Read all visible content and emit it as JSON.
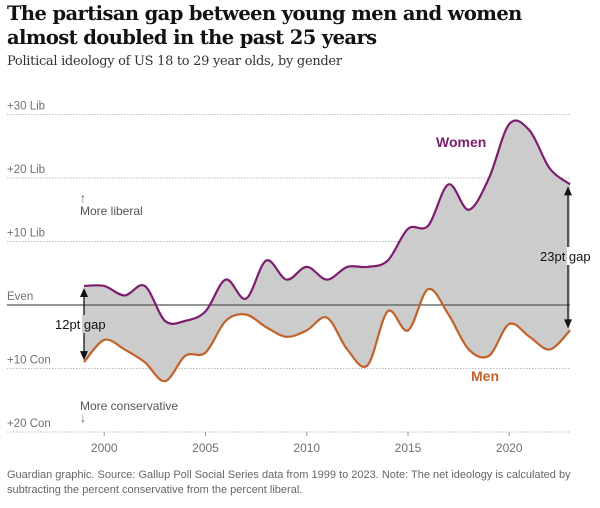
{
  "chart_data": {
    "type": "area",
    "title": "The partisan gap between young men and women almost doubled in the past 25 years",
    "subtitle": "Political ideology of US 18 to 29 year olds, by gender",
    "xlabel": "",
    "ylabel": "",
    "x": [
      1999,
      2000,
      2001,
      2002,
      2003,
      2004,
      2005,
      2006,
      2007,
      2008,
      2009,
      2010,
      2011,
      2012,
      2013,
      2014,
      2015,
      2016,
      2017,
      2018,
      2019,
      2020,
      2021,
      2022,
      2023
    ],
    "series": [
      {
        "name": "Women",
        "color": "#7d1d6e",
        "values": [
          3,
          3,
          1.5,
          3,
          -2.5,
          -2.5,
          -1,
          4,
          1,
          7,
          4,
          6,
          4,
          6,
          6,
          7,
          12,
          12.5,
          19,
          15,
          20,
          28.5,
          27.5,
          21.5,
          19
        ]
      },
      {
        "name": "Men",
        "color": "#c0622a",
        "values": [
          -9,
          -5.5,
          -7,
          -9,
          -12,
          -8,
          -7.5,
          -2.5,
          -1.5,
          -3.5,
          -5,
          -4,
          -2,
          -7,
          -9.5,
          -1,
          -4,
          2.5,
          -1.5,
          -7,
          -8,
          -3,
          -5,
          -7,
          -4
        ]
      }
    ],
    "fill_between_color": "#cccccc",
    "ylim": [
      -20,
      30
    ],
    "xlim": [
      1999,
      2023
    ],
    "y_ticks": [
      {
        "value": 30,
        "label": "+30 Lib"
      },
      {
        "value": 20,
        "label": "+20 Lib"
      },
      {
        "value": 10,
        "label": "+10 Lib"
      },
      {
        "value": 0,
        "label": "Even"
      },
      {
        "value": -10,
        "label": "+10 Con"
      },
      {
        "value": -20,
        "label": "+20 Con"
      }
    ],
    "x_ticks": [
      2000,
      2005,
      2010,
      2015,
      2020
    ],
    "grid": true,
    "annotations": [
      {
        "text": "↑",
        "for": "more-liberal-arrow"
      },
      {
        "text": "More liberal"
      },
      {
        "text": "More conservative"
      },
      {
        "text": "↓",
        "for": "more-conservative-arrow"
      },
      {
        "text": "12pt gap",
        "year": 1999
      },
      {
        "text": "23pt gap",
        "year": 2023
      }
    ],
    "legend": "inline-labels"
  },
  "labels": {
    "title": "The partisan gap between young men and women almost doubled in the past 25 years",
    "subtitle": "Political ideology of US 18 to 29 year olds, by gender",
    "more_liberal_arrow": "↑",
    "more_liberal": "More liberal",
    "more_conservative": "More conservative",
    "more_conservative_arrow": "↓",
    "gap_start": "12pt gap",
    "gap_end": "23pt gap",
    "women": "Women",
    "men": "Men",
    "footer": "Guardian graphic. Source: Gallup Poll Social Series data from 1999 to 2023. Note: The net ideology is calculated by subtracting the percent conservative from the percent liberal."
  }
}
